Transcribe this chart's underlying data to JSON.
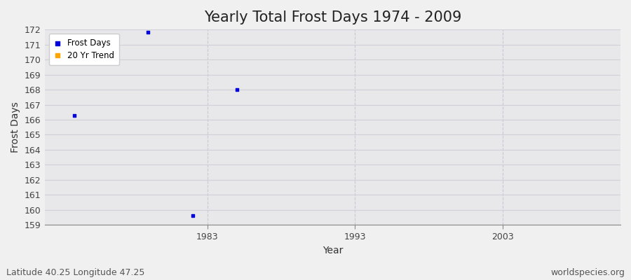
{
  "title": "Yearly Total Frost Days 1974 - 2009",
  "xlabel": "Year",
  "ylabel": "Frost Days",
  "subtitle": "Latitude 40.25 Longitude 47.25",
  "watermark": "worldspecies.org",
  "years": [
    1974,
    1979,
    1982,
    1985
  ],
  "values": [
    166.3,
    171.8,
    159.6,
    168.0
  ],
  "point_color": "#0000dd",
  "trend_color": "#ffa500",
  "xlim": [
    1972,
    2011
  ],
  "ylim": [
    159,
    172
  ],
  "yticks": [
    159,
    160,
    161,
    162,
    163,
    164,
    165,
    166,
    167,
    168,
    169,
    170,
    171,
    172
  ],
  "xticks": [
    1983,
    1993,
    2003
  ],
  "fig_bg_color": "#f0f0f0",
  "plot_bg": "#e8e8ea",
  "hgrid_color": "#d0d0d8",
  "vgrid_color": "#c8c8d8",
  "legend_labels": [
    "Frost Days",
    "20 Yr Trend"
  ],
  "legend_colors": [
    "#0000dd",
    "#ffa500"
  ],
  "title_fontsize": 15,
  "axis_label_fontsize": 10,
  "tick_fontsize": 9,
  "subtitle_fontsize": 9,
  "watermark_fontsize": 9
}
